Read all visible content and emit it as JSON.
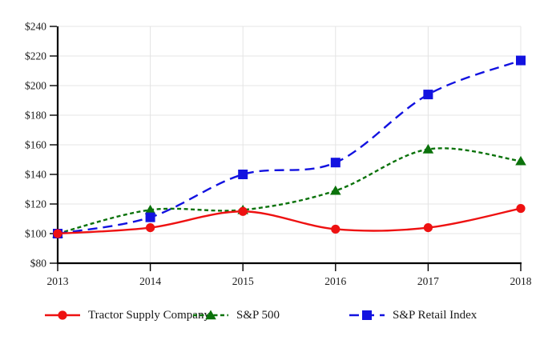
{
  "chart_data": {
    "type": "line",
    "title": "",
    "xlabel": "",
    "ylabel": "",
    "categories": [
      "2013",
      "2014",
      "2015",
      "2016",
      "2017",
      "2018"
    ],
    "series": [
      {
        "name": "Tractor Supply Company",
        "values": [
          100,
          104,
          115,
          103,
          104,
          117
        ],
        "color": "#ee1111",
        "marker": "circle",
        "line_style": "solid"
      },
      {
        "name": "S&P 500",
        "values": [
          100,
          116,
          116,
          129,
          157,
          149
        ],
        "color": "#0b720b",
        "marker": "triangle",
        "line_style": "short-dash"
      },
      {
        "name": "S&P Retail Index",
        "values": [
          100,
          111,
          140,
          148,
          194,
          217
        ],
        "color": "#1212e0",
        "marker": "square",
        "line_style": "long-dash"
      }
    ],
    "ylim": [
      80,
      240
    ],
    "y_ticks": [
      {
        "value": 240,
        "label": "$240"
      },
      {
        "value": 220,
        "label": "$220"
      },
      {
        "value": 200,
        "label": "$200"
      },
      {
        "value": 180,
        "label": "$180"
      },
      {
        "value": 160,
        "label": "$160"
      },
      {
        "value": 140,
        "label": "$140"
      },
      {
        "value": 120,
        "label": "$120"
      },
      {
        "value": 100,
        "label": "$100"
      },
      {
        "value": 80,
        "label": "$80"
      }
    ],
    "grid": true,
    "legend_position": "bottom",
    "colors": {
      "grid": "#e4e4e4",
      "axis": "#000000",
      "text": "#1a1a1a",
      "background": "#ffffff"
    }
  }
}
